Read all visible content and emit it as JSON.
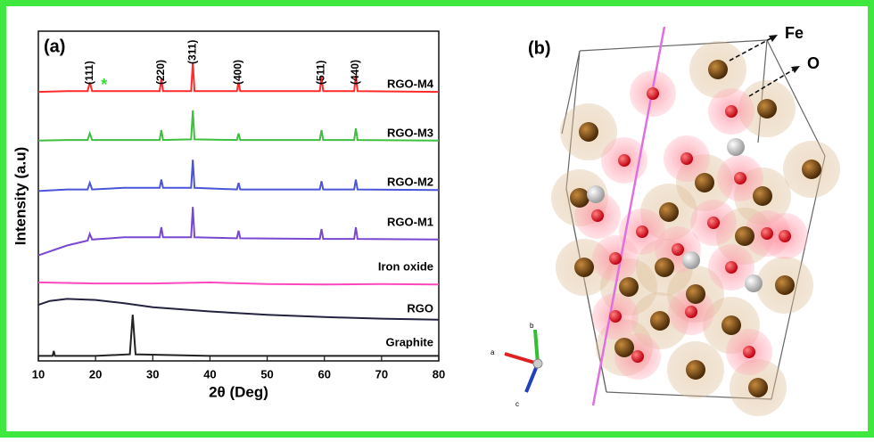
{
  "chart_data": {
    "type": "line",
    "panel_label": "(a)",
    "x_label": "2θ (Deg)",
    "y_label": "Intensity (a.u)",
    "xlim": [
      10,
      80
    ],
    "xticks": [
      10,
      20,
      30,
      40,
      50,
      60,
      70,
      80
    ],
    "ylim": [
      0,
      100
    ],
    "peak_labels": [
      "(111)",
      "(220)",
      "(311)",
      "(400)",
      "(511)",
      "(440)"
    ],
    "impurity_marker": "*",
    "series": [
      {
        "name": "RGO-M4",
        "color": "#ff2a2a",
        "x": [
          10,
          15,
          18.6,
          19,
          19.4,
          25,
          31.2,
          31.5,
          31.8,
          36.7,
          37,
          37.3,
          44.7,
          45,
          45.3,
          59.2,
          59.5,
          59.8,
          65.2,
          65.5,
          65.8,
          80
        ],
        "values": [
          81.6,
          81.8,
          81.8,
          84.5,
          81.8,
          81.8,
          81.8,
          85.5,
          81.8,
          81.8,
          90.5,
          81.8,
          81.8,
          84.5,
          81.8,
          81.8,
          86,
          81.8,
          81.8,
          86.5,
          81.8,
          81.6
        ]
      },
      {
        "name": "RGO-M3",
        "color": "#3fbf3f",
        "x": [
          10,
          15,
          18.6,
          19,
          19.4,
          25,
          31.2,
          31.5,
          31.8,
          36.7,
          37,
          37.3,
          44.7,
          45,
          45.3,
          59.2,
          59.5,
          59.8,
          65.2,
          65.5,
          65.8,
          80
        ],
        "values": [
          66.8,
          67,
          67,
          69,
          67,
          67,
          67,
          70,
          67,
          67.2,
          76,
          67.2,
          67,
          69,
          67,
          67,
          70,
          67,
          67,
          70.5,
          67,
          66.8
        ]
      },
      {
        "name": "RGO-M2",
        "color": "#4a55d8",
        "x": [
          10,
          15,
          18.6,
          19,
          19.4,
          25,
          31.2,
          31.5,
          31.8,
          36.7,
          37,
          37.3,
          44.7,
          45,
          45.3,
          59.2,
          59.5,
          59.8,
          65.2,
          65.5,
          65.8,
          80
        ],
        "values": [
          51.5,
          52,
          52,
          54,
          52,
          52.5,
          52.5,
          55,
          52.5,
          52.5,
          61,
          52.5,
          52,
          54,
          52,
          52,
          54.5,
          52,
          52,
          55,
          52,
          51.8
        ]
      },
      {
        "name": "RGO-M1",
        "color": "#7a48d0",
        "x": [
          10,
          15,
          18.6,
          19,
          19.4,
          25,
          31.2,
          31.5,
          31.8,
          36.7,
          37,
          37.3,
          44.7,
          45,
          45.3,
          59.2,
          59.5,
          59.8,
          65.2,
          65.5,
          65.8,
          80
        ],
        "values": [
          32,
          35,
          36.5,
          38.5,
          36.8,
          37.5,
          37.5,
          40.5,
          37.5,
          37.5,
          46.7,
          37.5,
          37.2,
          39.5,
          37.2,
          37,
          40,
          37,
          37,
          40.5,
          37,
          36.8
        ]
      },
      {
        "name": "Iron oxide",
        "color": "#ff48c0",
        "x": [
          10,
          20,
          30,
          40,
          50,
          60,
          70,
          80
        ],
        "values": [
          23.8,
          23.5,
          23.5,
          23.8,
          23.3,
          23.2,
          23.3,
          23.2
        ]
      },
      {
        "name": "RGO",
        "color": "#23233f",
        "x": [
          10,
          12,
          15,
          20,
          25,
          30,
          40,
          50,
          60,
          70,
          80
        ],
        "values": [
          17,
          18.2,
          18.8,
          18.5,
          17.5,
          16.3,
          15,
          14,
          13.3,
          12.8,
          12.5
        ]
      },
      {
        "name": "Graphite",
        "color": "#222222",
        "x": [
          10,
          12.5,
          12.7,
          12.9,
          20,
          26,
          26.5,
          27,
          40,
          55,
          80
        ],
        "values": [
          1.5,
          1.5,
          3,
          1.5,
          1.5,
          2,
          14,
          2,
          1.5,
          1.5,
          1.5
        ]
      }
    ]
  },
  "structure": {
    "panel_label": "(b)",
    "atom_labels": [
      "Fe",
      "O"
    ],
    "axis_labels": [
      "a",
      "b",
      "c"
    ]
  }
}
